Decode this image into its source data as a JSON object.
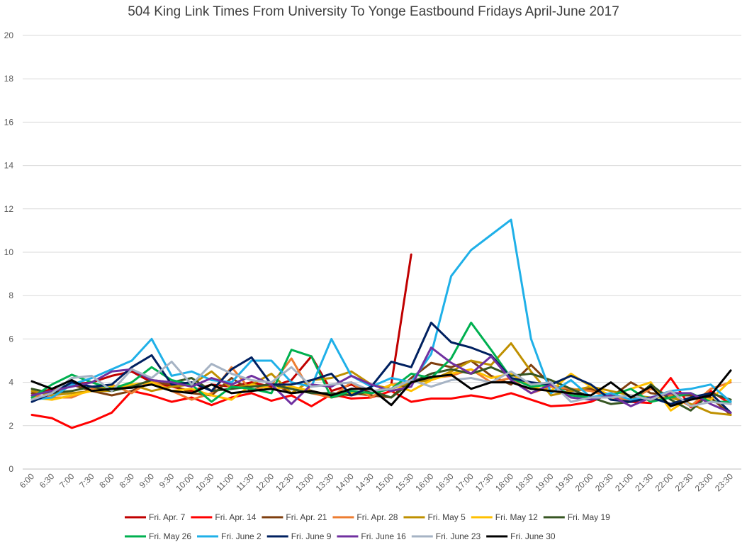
{
  "chart_data": {
    "type": "line",
    "title": "504 King Link Times From University To Yonge Eastbound Fridays April-June 2017",
    "xlabel": "",
    "ylabel": "",
    "ylim": [
      0,
      20
    ],
    "yticks": [
      0,
      2,
      4,
      6,
      8,
      10,
      12,
      14,
      16,
      18,
      20
    ],
    "grid": true,
    "legend_position": "bottom",
    "x": [
      "6:00",
      "6:30",
      "7:00",
      "7:30",
      "8:00",
      "8:30",
      "9:00",
      "9:30",
      "10:00",
      "10:30",
      "11:00",
      "11:30",
      "12:00",
      "12:30",
      "13:00",
      "13:30",
      "14:00",
      "14:30",
      "15:00",
      "15:30",
      "16:00",
      "16:30",
      "17:00",
      "17:30",
      "18:00",
      "18:30",
      "19:00",
      "19:30",
      "20:00",
      "20:30",
      "21:00",
      "21:30",
      "22:00",
      "22:30",
      "23:00",
      "23:30"
    ],
    "series": [
      {
        "name": "Fri. Apr. 7",
        "color": "#c00000",
        "values": [
          3.4,
          3.7,
          3.9,
          4.0,
          4.3,
          4.5,
          4.0,
          3.8,
          3.6,
          3.9,
          3.8,
          4.0,
          3.8,
          4.1,
          5.2,
          3.6,
          3.9,
          3.5,
          3.9,
          9.9,
          null,
          null,
          null,
          null,
          null,
          null,
          null,
          null,
          null,
          null,
          null,
          null,
          null,
          null,
          null,
          null
        ]
      },
      {
        "name": "Fri. Apr. 14",
        "color": "#ff0000",
        "values": [
          2.5,
          2.35,
          1.9,
          2.2,
          2.6,
          3.6,
          3.4,
          3.1,
          3.3,
          2.95,
          3.3,
          3.5,
          3.15,
          3.4,
          2.9,
          3.45,
          3.25,
          3.3,
          3.6,
          3.1,
          3.25,
          3.25,
          3.4,
          3.25,
          3.5,
          3.2,
          2.9,
          2.95,
          3.1,
          3.5,
          3.1,
          3.05,
          4.2,
          2.85,
          3.6,
          3.0
        ]
      },
      {
        "name": "Fri. Apr. 21",
        "color": "#7f3f0f",
        "values": [
          3.5,
          3.5,
          3.9,
          3.6,
          3.4,
          3.6,
          4.0,
          3.9,
          3.5,
          3.4,
          4.2,
          3.6,
          4.0,
          3.5,
          3.6,
          3.3,
          3.5,
          3.4,
          3.3,
          4.2,
          4.9,
          4.7,
          5.0,
          4.3,
          3.9,
          4.8,
          3.9,
          3.6,
          3.7,
          3.3,
          4.0,
          3.5,
          3.4,
          3.4,
          3.3,
          2.5
        ]
      },
      {
        "name": "Fri. Apr. 28",
        "color": "#ed7d31",
        "values": [
          3.4,
          3.3,
          3.3,
          3.7,
          3.9,
          3.5,
          4.1,
          3.6,
          3.2,
          3.5,
          4.7,
          3.6,
          3.9,
          5.1,
          3.5,
          3.3,
          4.0,
          3.3,
          3.9,
          4.0,
          4.2,
          4.3,
          4.6,
          4.0,
          4.2,
          3.5,
          3.8,
          3.7,
          3.6,
          3.3,
          3.2,
          3.7,
          3.4,
          2.9,
          3.7,
          4.0
        ]
      },
      {
        "name": "Fri. May 5",
        "color": "#bf9000",
        "values": [
          3.6,
          3.4,
          3.5,
          3.6,
          3.6,
          3.9,
          3.6,
          3.8,
          3.9,
          4.5,
          3.7,
          3.9,
          4.4,
          3.5,
          4.1,
          4.2,
          4.5,
          3.9,
          3.7,
          4.0,
          4.1,
          4.5,
          5.0,
          4.8,
          5.8,
          4.5,
          3.4,
          3.6,
          3.8,
          3.6,
          3.4,
          3.3,
          3.3,
          3.0,
          2.6,
          2.5
        ]
      },
      {
        "name": "Fri. May 12",
        "color": "#ffc000",
        "values": [
          3.3,
          3.2,
          3.4,
          3.6,
          3.8,
          3.9,
          4.0,
          3.6,
          3.7,
          3.4,
          3.2,
          3.9,
          3.7,
          3.8,
          3.6,
          3.4,
          3.5,
          3.5,
          3.9,
          3.6,
          4.1,
          4.4,
          4.6,
          4.2,
          4.4,
          3.8,
          3.6,
          4.4,
          3.8,
          3.4,
          3.7,
          4.0,
          2.7,
          3.3,
          3.2,
          4.1
        ]
      },
      {
        "name": "Fri. May 19",
        "color": "#375623",
        "values": [
          3.7,
          3.5,
          3.6,
          3.8,
          3.6,
          3.8,
          4.1,
          4.0,
          4.2,
          3.6,
          3.7,
          3.8,
          3.9,
          3.7,
          3.5,
          3.5,
          3.4,
          3.6,
          3.3,
          4.0,
          4.4,
          4.6,
          4.4,
          4.7,
          4.3,
          4.4,
          4.1,
          3.7,
          3.3,
          3.0,
          3.1,
          3.9,
          3.2,
          2.7,
          3.5,
          3.2
        ]
      },
      {
        "name": "Fri. May 26",
        "color": "#00b050",
        "values": [
          3.3,
          3.9,
          4.35,
          4.0,
          3.7,
          4.0,
          4.7,
          4.1,
          3.9,
          3.1,
          3.8,
          3.7,
          3.5,
          5.5,
          5.2,
          3.3,
          3.6,
          3.5,
          3.7,
          4.4,
          4.2,
          5.1,
          6.75,
          5.5,
          4.2,
          3.8,
          3.9,
          3.4,
          3.3,
          3.4,
          3.7,
          3.1,
          3.3,
          3.5,
          3.1,
          3.1
        ]
      },
      {
        "name": "Fri. June 2",
        "color": "#1fb0e8",
        "values": [
          3.2,
          3.3,
          3.9,
          4.2,
          4.6,
          5.0,
          6.0,
          4.3,
          4.5,
          4.1,
          4.0,
          5.0,
          5.0,
          4.0,
          3.8,
          6.0,
          4.3,
          3.8,
          4.2,
          4.0,
          5.3,
          8.9,
          10.1,
          10.8,
          11.5,
          6.0,
          3.5,
          4.1,
          3.3,
          3.5,
          3.2,
          3.3,
          3.6,
          3.7,
          3.9,
          3.1
        ]
      },
      {
        "name": "Fri. June 9",
        "color": "#002060",
        "values": [
          3.1,
          3.5,
          4.0,
          3.8,
          3.9,
          4.7,
          5.25,
          3.9,
          4.0,
          3.6,
          4.6,
          5.15,
          3.9,
          3.9,
          4.1,
          4.4,
          3.4,
          3.8,
          4.95,
          4.7,
          6.75,
          5.85,
          5.6,
          5.25,
          4.2,
          4.0,
          3.9,
          4.3,
          3.9,
          3.2,
          3.1,
          3.3,
          3.0,
          3.3,
          3.5,
          2.6
        ]
      },
      {
        "name": "Fri. June 16",
        "color": "#7030a0",
        "values": [
          3.4,
          3.6,
          3.8,
          4.0,
          4.5,
          4.6,
          4.1,
          4.0,
          3.8,
          4.2,
          3.9,
          4.3,
          3.9,
          3.0,
          3.9,
          3.8,
          4.3,
          3.9,
          3.6,
          3.8,
          5.6,
          4.9,
          4.4,
          5.2,
          4.1,
          3.5,
          3.9,
          3.3,
          3.2,
          3.4,
          2.9,
          3.3,
          3.5,
          3.5,
          3.0,
          2.6
        ]
      },
      {
        "name": "Fri. June 23",
        "color": "#a6b3c4",
        "values": [
          3.2,
          3.5,
          4.2,
          4.3,
          3.6,
          4.6,
          4.2,
          4.95,
          3.9,
          4.85,
          4.4,
          4.1,
          4.0,
          4.7,
          3.8,
          3.9,
          4.0,
          3.6,
          3.7,
          4.1,
          3.8,
          4.1,
          4.2,
          4.0,
          4.5,
          3.9,
          4.0,
          3.1,
          3.3,
          3.3,
          3.4,
          3.2,
          3.6,
          2.9,
          3.1,
          3.0
        ]
      },
      {
        "name": "Fri. June 30",
        "color": "#000000",
        "values": [
          4.05,
          3.7,
          4.1,
          3.6,
          3.7,
          3.75,
          3.9,
          3.6,
          3.5,
          3.9,
          3.5,
          3.6,
          3.7,
          3.5,
          3.6,
          3.4,
          3.7,
          3.7,
          2.95,
          4.0,
          4.25,
          4.35,
          3.7,
          4.0,
          4.0,
          3.7,
          3.6,
          3.5,
          3.4,
          4.0,
          3.3,
          3.8,
          2.9,
          3.2,
          3.4,
          4.55
        ]
      }
    ]
  }
}
